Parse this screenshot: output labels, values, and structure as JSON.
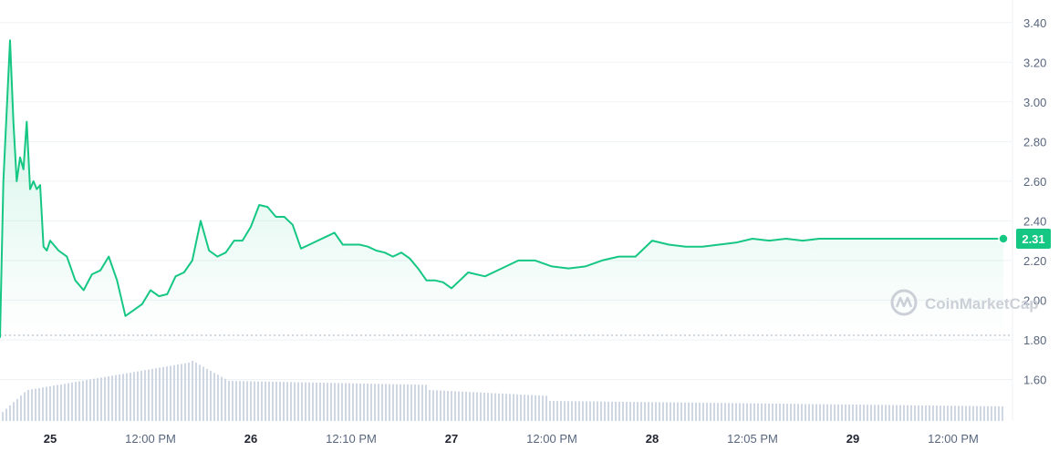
{
  "chart_data": {
    "type": "area",
    "title": "",
    "xlabel": "",
    "ylabel": "",
    "ylim": [
      1.4,
      3.5
    ],
    "y_ticks": [
      "3.40",
      "3.20",
      "3.00",
      "2.80",
      "2.60",
      "2.40",
      "2.20",
      "2.00",
      "1.80",
      "1.60"
    ],
    "x_ticks": [
      {
        "label": "25",
        "bold": true
      },
      {
        "label": "12:00 PM",
        "bold": false
      },
      {
        "label": "26",
        "bold": true
      },
      {
        "label": "12:10 PM",
        "bold": false
      },
      {
        "label": "27",
        "bold": true
      },
      {
        "label": "12:00 PM",
        "bold": false
      },
      {
        "label": "28",
        "bold": true
      },
      {
        "label": "12:05 PM",
        "bold": false
      },
      {
        "label": "29",
        "bold": true
      },
      {
        "label": "12:00 PM",
        "bold": false
      }
    ],
    "current_price_label": "2.31",
    "watermark": "CoinMarketCap",
    "grid": true,
    "colors": {
      "line": "#16c784",
      "area_top": "#16c784",
      "volume": "#cfd6e4",
      "grid": "#eff2f5",
      "axis_text": "#58667e"
    },
    "series": [
      {
        "x": [
          "24 18:00",
          "24 18:24",
          "24 18:48",
          "24 19:12",
          "24 19:36",
          "24 20:00",
          "24 20:24",
          "24 20:48",
          "24 21:12",
          "24 21:36",
          "24 22:00",
          "24 22:24",
          "24 22:48",
          "24 23:12",
          "24 23:36",
          "25 00:00",
          "25 01:00",
          "25 02:00",
          "25 03:00",
          "25 04:00",
          "25 05:00",
          "25 06:00",
          "25 07:00",
          "25 08:00",
          "25 09:00",
          "25 10:00",
          "25 11:00",
          "25 12:00",
          "25 13:00",
          "25 14:00",
          "25 15:00",
          "25 16:00",
          "25 17:00",
          "25 18:00",
          "25 19:00",
          "25 20:00",
          "25 21:00",
          "25 22:00",
          "25 23:00",
          "26 00:00",
          "26 01:00",
          "26 02:00",
          "26 03:00",
          "26 04:00",
          "26 05:00",
          "26 06:00",
          "26 07:00",
          "26 08:00",
          "26 09:00",
          "26 10:00",
          "26 11:00",
          "26 12:00",
          "26 13:00",
          "26 14:00",
          "26 15:00",
          "26 16:00",
          "26 17:00",
          "26 18:00",
          "26 19:00",
          "26 20:00",
          "26 21:00",
          "26 22:00",
          "26 23:00",
          "27 00:00",
          "27 01:00",
          "27 02:00",
          "27 04:00",
          "27 06:00",
          "27 08:00",
          "27 10:00",
          "27 12:00",
          "27 14:00",
          "27 16:00",
          "27 18:00",
          "27 20:00",
          "27 22:00",
          "28 00:00",
          "28 02:00",
          "28 04:00",
          "28 06:00",
          "28 08:00",
          "28 10:00",
          "28 12:00",
          "28 14:00",
          "28 16:00",
          "28 18:00",
          "28 20:00",
          "28 22:00",
          "29 00:00",
          "29 02:00",
          "29 04:00",
          "29 06:00",
          "29 08:00",
          "29 10:00",
          "29 12:00",
          "29 14:00",
          "29 16:00",
          "29 18:00"
        ],
        "values": [
          1.81,
          2.6,
          2.95,
          3.31,
          2.9,
          2.6,
          2.72,
          2.66,
          2.9,
          2.56,
          2.6,
          2.56,
          2.58,
          2.27,
          2.25,
          2.3,
          2.25,
          2.22,
          2.1,
          2.05,
          2.13,
          2.15,
          2.22,
          2.1,
          1.92,
          1.95,
          1.98,
          2.05,
          2.02,
          2.03,
          2.12,
          2.14,
          2.2,
          2.4,
          2.25,
          2.22,
          2.24,
          2.3,
          2.3,
          2.37,
          2.48,
          2.47,
          2.42,
          2.42,
          2.38,
          2.26,
          2.28,
          2.3,
          2.32,
          2.34,
          2.28,
          2.28,
          2.28,
          2.27,
          2.25,
          2.24,
          2.22,
          2.24,
          2.21,
          2.16,
          2.1,
          2.1,
          2.09,
          2.06,
          2.1,
          2.14,
          2.12,
          2.16,
          2.2,
          2.2,
          2.17,
          2.16,
          2.17,
          2.2,
          2.22,
          2.22,
          2.3,
          2.28,
          2.27,
          2.27,
          2.28,
          2.29,
          2.31,
          2.3,
          2.31,
          2.3,
          2.31,
          2.31,
          2.31,
          2.31,
          2.31,
          2.31,
          2.31,
          2.31,
          2.31,
          2.31,
          2.31,
          2.31
        ]
      }
    ]
  }
}
